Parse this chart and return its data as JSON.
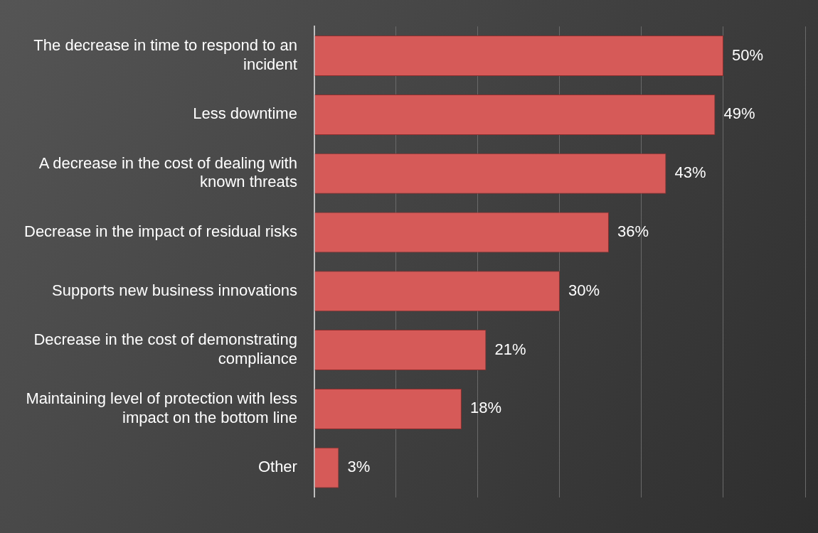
{
  "chart_data": {
    "type": "bar",
    "orientation": "horizontal",
    "categories": [
      "The decrease in time to respond to an incident",
      "Less downtime",
      "A decrease in the cost of dealing with known threats",
      "Decrease in the impact of residual risks",
      "Supports new business innovations",
      "Decrease in the cost of demonstrating compliance",
      "Maintaining level of protection with less impact on the bottom line",
      "Other"
    ],
    "values": [
      50,
      49,
      43,
      36,
      30,
      21,
      18,
      3
    ],
    "value_labels": [
      "50%",
      "49%",
      "43%",
      "36%",
      "30%",
      "21%",
      "18%",
      "3%"
    ],
    "color": "#d65a58",
    "xlim": [
      0,
      60
    ],
    "xticks": [
      {
        "value": 0,
        "label": null
      },
      {
        "value": 10,
        "label": null
      },
      {
        "value": 20,
        "label": null
      },
      {
        "value": 30,
        "label": null
      },
      {
        "value": 40,
        "label": null
      },
      {
        "value": 50,
        "label": null
      },
      {
        "value": 60,
        "label": null
      }
    ],
    "grid": "x",
    "tick_labels": "y"
  }
}
